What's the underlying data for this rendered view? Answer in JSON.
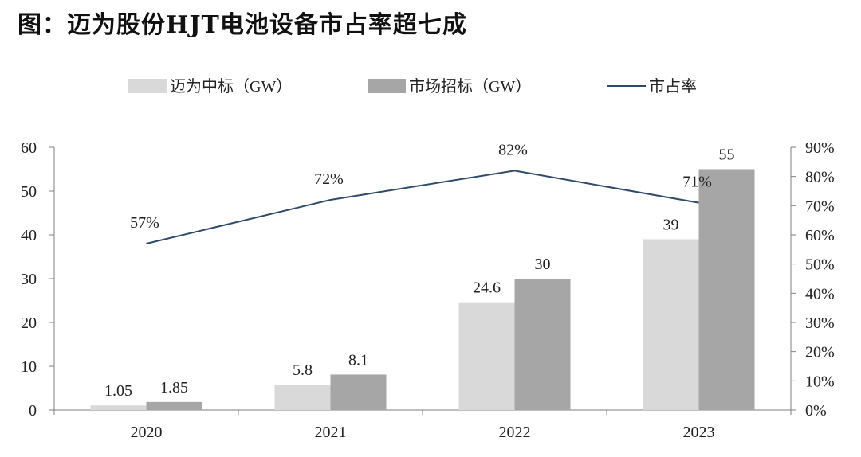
{
  "title": "图：迈为股份HJT电池设备市占率超七成",
  "chart_data": {
    "type": "bar",
    "categories": [
      "2020",
      "2021",
      "2022",
      "2023"
    ],
    "series": [
      {
        "name": "迈为中标（GW）",
        "values": [
          1.05,
          5.8,
          24.6,
          39
        ],
        "color": "#d9d9d9",
        "axis": "left"
      },
      {
        "name": "市场招标（GW）",
        "values": [
          1.85,
          8.1,
          30,
          55
        ],
        "color": "#a6a6a6",
        "axis": "left"
      }
    ],
    "line_series": {
      "name": "市占率",
      "values": [
        57,
        72,
        82,
        71
      ],
      "labels": [
        "57%",
        "72%",
        "82%",
        "71%"
      ],
      "color": "#2f4a6b",
      "axis": "right"
    },
    "ylim": [
      0,
      60
    ],
    "yticks": [
      "0",
      "10",
      "20",
      "30",
      "40",
      "50",
      "60"
    ],
    "y2lim": [
      0,
      90
    ],
    "y2ticks": [
      "0%",
      "10%",
      "20%",
      "30%",
      "40%",
      "50%",
      "60%",
      "70%",
      "80%",
      "90%"
    ],
    "bar_labels": [
      [
        "1.05",
        "5.8",
        "24.6",
        "39"
      ],
      [
        "1.85",
        "8.1",
        "30",
        "55"
      ]
    ],
    "legend_position": "top-center",
    "grid": false
  }
}
